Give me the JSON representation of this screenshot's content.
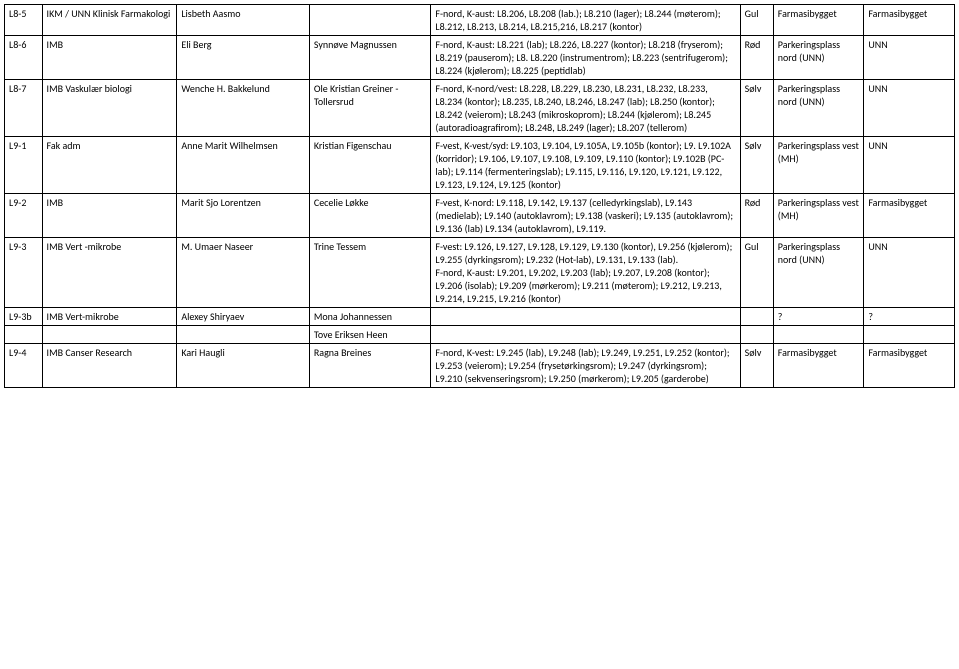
{
  "rows": [
    {
      "code": "L8-5",
      "dept": "IKM / UNN  Klinisk Farmakologi",
      "person1": "Lisbeth Aasmo",
      "person2": "",
      "desc": "F-nord, K-aust: L8.206, L8.208 (lab.); L8.210 (lager); L8.244 (møterom); L8.212, L8.213, L8.214, L8.215,216, L8.217 (kontor)",
      "color": "Gul",
      "loc1": "Farmasibygget",
      "loc2": "Farmasibygget"
    },
    {
      "code": "L8-6",
      "dept": "IMB",
      "person1": "Eli Berg",
      "person2": "Synnøve Magnussen",
      "desc": "F-nord, K-aust: L8.221 (lab); L8.226, L8.227 (kontor); L8.218 (fryserom); L8.219 (pauserom); L8. L8.220 (instrumentrom); L8.223 (sentrifugerom); L8.224 (kjølerom); L8.225 (peptidlab)",
      "color": "Rød",
      "loc1": "Parkeringsplass nord (UNN)",
      "loc2": "UNN"
    },
    {
      "code": "L8-7",
      "dept": "IMB   Vaskulær biologi",
      "person1": "Wenche H. Bakkelund",
      "person2": "Ole Kristian Greiner -Tollersrud",
      "desc": "F-nord, K-nord/vest: L8.228, L8.229, L8.230, L8.231, L8.232, L8.233, L8.234 (kontor); L8.235, L8.240, L8.246, L8.247 (lab); L8.250 (kontor); L8.242 (veierom); L8.243 (mikroskoprom); L8.244 (kjølerom); L8.245 (autoradioagrafirom); L8.248, L8.249 (lager); L8.207 (tellerom)",
      "color": "Sølv",
      "loc1": "Parkeringsplass nord (UNN)",
      "loc2": "UNN"
    },
    {
      "code": "L9-1",
      "dept": "Fak adm",
      "person1": "Anne Marit Wilhelmsen",
      "person2": "Kristian Figenschau",
      "desc": "F-vest, K-vest/syd: L9.103, L9.104, L9.105A, L9.105b (kontor); L9. L9.102A (korridor); L9.106, L9.107, L9.108, L9.109, L9.110 (kontor); L9.102B (PC-lab); L9.114 (fermenteringslab); L9.115, L9.116, L9.120, L9.121, L9.122, L9.123, L9.124, L9.125 (kontor)",
      "color": "Sølv",
      "loc1": "Parkeringsplass vest (MH)",
      "loc2": "UNN"
    },
    {
      "code": "L9-2",
      "dept": "IMB",
      "person1": "Marit Sjo Lorentzen",
      "person2": "Cecelie Løkke",
      "desc": "F-vest, K-nord: L9.118, L9.142, L9.137 (celledyrkingslab), L9.143 (medielab); L9.140 (autoklavrom); L9.138 (vaskeri); L9.135 (autoklavrom); L9.136 (lab) L9.134 (autoklavrom), L9.119.",
      "color": "Rød",
      "loc1": "Parkeringsplass vest (MH)",
      "loc2": "Farmasibygget"
    },
    {
      "code": "L9-3",
      "dept": "IMB  Vert -mikrobe",
      "person1": "M. Umaer Naseer",
      "person2": "Trine Tessem",
      "desc": "F-vest: L9.126, L9.127, L9.128, L9.129, L9.130 (kontor), L9.256 (kjølerom); L9.255 (dyrkingsrom); L9.232 (Hot-lab), L9.131, L9.133 (lab).\nF-nord, K-aust: L9.201, L9.202, L9.203 (lab); L9.207, L9.208 (kontor); L9.206 (isolab); L9.209 (mørkerom); L9.211 (møterom); L9.212, L9.213, L9.214, L9.215, L9.216 (kontor)",
      "color": "Gul",
      "loc1": "Parkeringsplass nord (UNN)",
      "loc2": "UNN"
    },
    {
      "code": "L9-3b",
      "dept": "IMB  Vert-mikrobe",
      "person1": "Alexey Shiryaev",
      "person2": "Mona Johannessen",
      "desc": "",
      "color": "",
      "loc1": "?",
      "loc2": "?",
      "extra_row_person2": "Tove Eriksen Heen"
    },
    {
      "code": "L9-4",
      "dept": "IMB  Canser Research",
      "person1": "Kari Haugli",
      "person2": "Ragna Breines",
      "desc": "F-nord, K-vest: L9.245 (lab), L9.248 (lab); L9.249, L9.251, L9.252 (kontor); L9.253 (veierom); L9.254 (frysetørkingsrom); L9.247 (dyrkingsrom); L9.210 (sekvenseringsrom); L9.250 (mørkerom); L9.205 (garderobe)",
      "color": "Sølv",
      "loc1": "Farmasibygget",
      "loc2": "Farmasibygget"
    }
  ]
}
